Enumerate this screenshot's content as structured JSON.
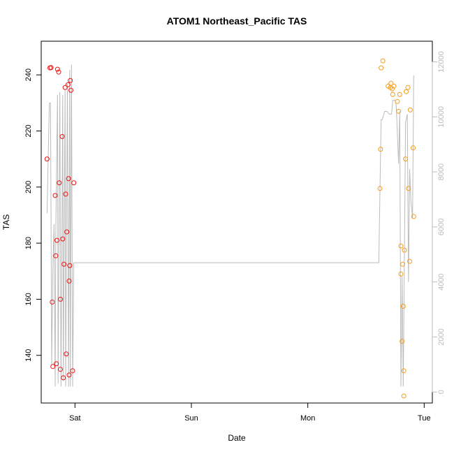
{
  "chart_data": {
    "type": "scatter",
    "title": "ATOM1 Northeast_Pacific TAS",
    "xlabel": "Date",
    "ylabel": "TAS",
    "x_unit": "days since Fri 00:00",
    "xlim": [
      0.71,
      4.07
    ],
    "ylim": [
      123,
      252
    ],
    "y2lim": [
      -400,
      12750
    ],
    "x_ticks": [
      {
        "value": 1,
        "label": "Sat"
      },
      {
        "value": 2,
        "label": "Sun"
      },
      {
        "value": 3,
        "label": "Mon"
      },
      {
        "value": 4,
        "label": "Tue"
      }
    ],
    "y_ticks": [
      140,
      160,
      180,
      200,
      220,
      240
    ],
    "y2_ticks": [
      0,
      2000,
      4000,
      6000,
      8000,
      10000,
      12000
    ],
    "colors": {
      "series1": "#ee1111",
      "series2": "#f59c1a",
      "altitude": "#bbbbbb",
      "axis": "#000000",
      "right_axis": "#bbbbbb"
    },
    "series": [
      {
        "color": "#ee1111",
        "points": [
          [
            0.76,
            210
          ],
          [
            0.785,
            242.5
          ],
          [
            0.795,
            242.6
          ],
          [
            0.805,
            159
          ],
          [
            0.81,
            136
          ],
          [
            0.83,
            197
          ],
          [
            0.835,
            175.5
          ],
          [
            0.84,
            137
          ],
          [
            0.845,
            181
          ],
          [
            0.85,
            242
          ],
          [
            0.86,
            241
          ],
          [
            0.865,
            201.5
          ],
          [
            0.875,
            160
          ],
          [
            0.875,
            135
          ],
          [
            0.89,
            218
          ],
          [
            0.895,
            181.5
          ],
          [
            0.9,
            132
          ],
          [
            0.905,
            172.5
          ],
          [
            0.915,
            235.5
          ],
          [
            0.92,
            197.5
          ],
          [
            0.925,
            140.5
          ],
          [
            0.93,
            184
          ],
          [
            0.94,
            236.5
          ],
          [
            0.945,
            203
          ],
          [
            0.95,
            166.5
          ],
          [
            0.95,
            133
          ],
          [
            0.955,
            172
          ],
          [
            0.96,
            238
          ],
          [
            0.965,
            234.5
          ],
          [
            0.98,
            134.5
          ],
          [
            0.99,
            201.5
          ]
        ]
      },
      {
        "color": "#f59c1a",
        "points": [
          [
            3.62,
            199.5
          ],
          [
            3.625,
            213.5
          ],
          [
            3.63,
            242.5
          ],
          [
            3.645,
            245
          ],
          [
            3.69,
            236
          ],
          [
            3.71,
            235.5
          ],
          [
            3.715,
            237
          ],
          [
            3.725,
            235
          ],
          [
            3.73,
            233
          ],
          [
            3.74,
            236
          ],
          [
            3.77,
            230.5
          ],
          [
            3.78,
            227
          ],
          [
            3.79,
            233
          ],
          [
            3.8,
            179
          ],
          [
            3.8,
            169
          ],
          [
            3.81,
            145
          ],
          [
            3.815,
            172.5
          ],
          [
            3.82,
            157.5
          ],
          [
            3.825,
            134.5
          ],
          [
            3.825,
            125.5
          ],
          [
            3.83,
            177.5
          ],
          [
            3.84,
            210
          ],
          [
            3.845,
            234
          ],
          [
            3.86,
            235.5
          ],
          [
            3.865,
            199.5
          ],
          [
            3.875,
            173.5
          ],
          [
            3.88,
            227.5
          ],
          [
            3.905,
            214
          ],
          [
            3.91,
            189.5
          ]
        ]
      }
    ],
    "altitude_series": {
      "color": "#bbbbbb",
      "axis": "right",
      "points": [
        [
          0.76,
          6500
        ],
        [
          0.78,
          10500
        ],
        [
          0.79,
          10500
        ],
        [
          0.8,
          1000
        ],
        [
          0.81,
          4500
        ],
        [
          0.82,
          6100
        ],
        [
          0.83,
          200
        ],
        [
          0.835,
          5700
        ],
        [
          0.85,
          10800
        ],
        [
          0.855,
          300
        ],
        [
          0.87,
          10900
        ],
        [
          0.88,
          200
        ],
        [
          0.885,
          3500
        ],
        [
          0.895,
          10800
        ],
        [
          0.9,
          400
        ],
        [
          0.915,
          11000
        ],
        [
          0.92,
          200
        ],
        [
          0.935,
          11200
        ],
        [
          0.945,
          200
        ],
        [
          0.955,
          11700
        ],
        [
          0.96,
          200
        ],
        [
          0.97,
          11900
        ],
        [
          0.98,
          200
        ],
        [
          0.99,
          4700
        ],
        [
          3.61,
          4700
        ],
        [
          3.63,
          9900
        ],
        [
          3.64,
          9900
        ],
        [
          3.66,
          10200
        ],
        [
          3.68,
          10200
        ],
        [
          3.7,
          10100
        ],
        [
          3.72,
          10100
        ],
        [
          3.73,
          10600
        ],
        [
          3.75,
          10600
        ],
        [
          3.76,
          10400
        ],
        [
          3.78,
          8300
        ],
        [
          3.79,
          10200
        ],
        [
          3.8,
          200
        ],
        [
          3.81,
          4200
        ],
        [
          3.82,
          200
        ],
        [
          3.84,
          9800
        ],
        [
          3.855,
          10100
        ],
        [
          3.865,
          4000
        ],
        [
          3.875,
          8100
        ],
        [
          3.885,
          7000
        ],
        [
          3.9,
          6300
        ],
        [
          3.91,
          11500
        ]
      ]
    }
  }
}
